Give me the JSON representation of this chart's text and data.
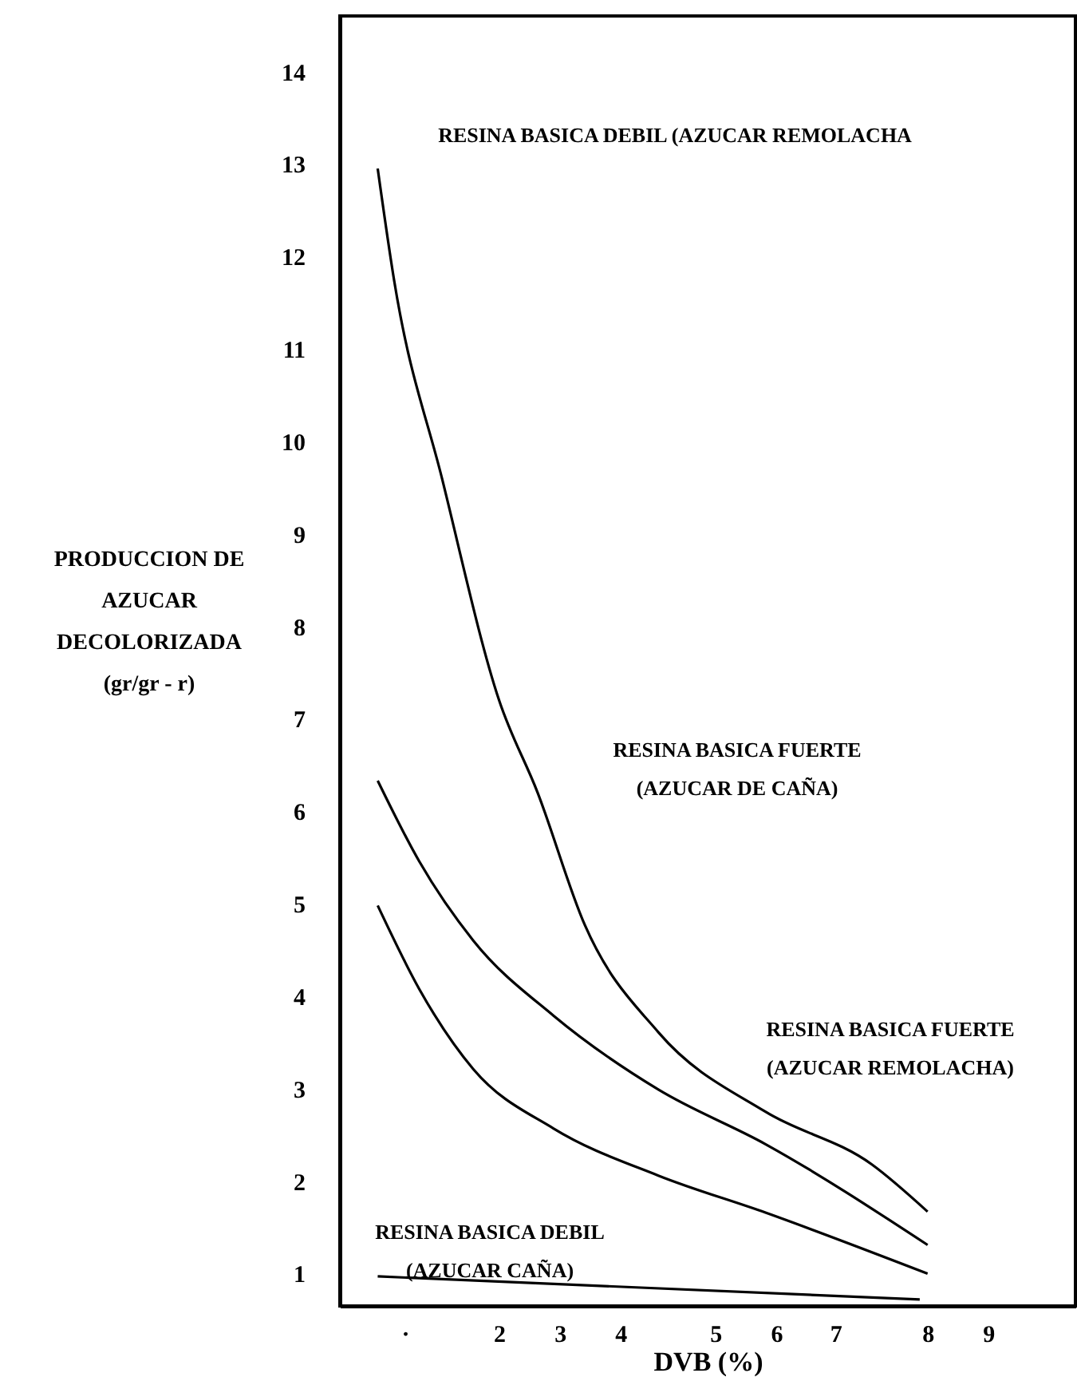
{
  "chart_data": {
    "type": "line",
    "xlabel": "DVB (%)",
    "ylabel": "PRODUCCION DE\nAZUCAR\nDECOLORIZADA\n(gr/gr - r)",
    "xlim": [
      -0.23,
      10.07
    ],
    "ylim": [
      0.65,
      14.6
    ],
    "xticks": [
      {
        "value": 0.68,
        "label": "·"
      },
      2,
      {
        "value": 2.85,
        "label": "3"
      },
      {
        "value": 3.7,
        "label": "4"
      },
      {
        "value": 5.03,
        "label": "5"
      },
      {
        "value": 5.88,
        "label": "6"
      },
      {
        "value": 6.71,
        "label": "7"
      },
      8,
      {
        "value": 8.85,
        "label": "9"
      }
    ],
    "yticks": [
      1,
      2,
      3,
      4,
      5,
      6,
      7,
      8,
      9,
      10,
      11,
      12,
      13,
      14
    ],
    "grid": false,
    "marker": "none",
    "line_style": "solid",
    "series": [
      {
        "color": "#000000",
        "x": [
          0.3,
          0.53,
          1.2,
          2.0,
          2.54,
          3.2,
          4.23,
          5.73,
          7.22,
          8.0
        ],
        "values": [
          12.95,
          11.74,
          9.6,
          7.2,
          6.2,
          4.77,
          3.61,
          2.75,
          2.18,
          1.67
        ]
      },
      {
        "color": "#000000",
        "x": [
          0.3,
          0.88,
          1.64,
          2.76,
          4.23,
          5.73,
          8.0
        ],
        "values": [
          6.33,
          5.46,
          4.6,
          3.79,
          2.99,
          2.4,
          1.31
        ]
      },
      {
        "color": "#000000",
        "x": [
          0.3,
          0.88,
          1.64,
          2.76,
          4.23,
          5.73,
          8.0
        ],
        "values": [
          4.98,
          4.08,
          3.21,
          2.57,
          2.06,
          1.66,
          1.0
        ]
      },
      {
        "color": "#000000",
        "x": [
          0.3,
          7.89
        ],
        "values": [
          0.97,
          0.72
        ]
      }
    ],
    "annotations": [
      "RESINA BASICA DEBIL (AZUCAR REMOLACHA",
      "RESINA BASICA FUERTE\n(AZUCAR DE CAÑA)",
      "RESINA BASICA FUERTE\n(AZUCAR REMOLACHA)",
      "RESINA BASICA DEBIL\n(AZUCAR CAÑA)"
    ]
  }
}
